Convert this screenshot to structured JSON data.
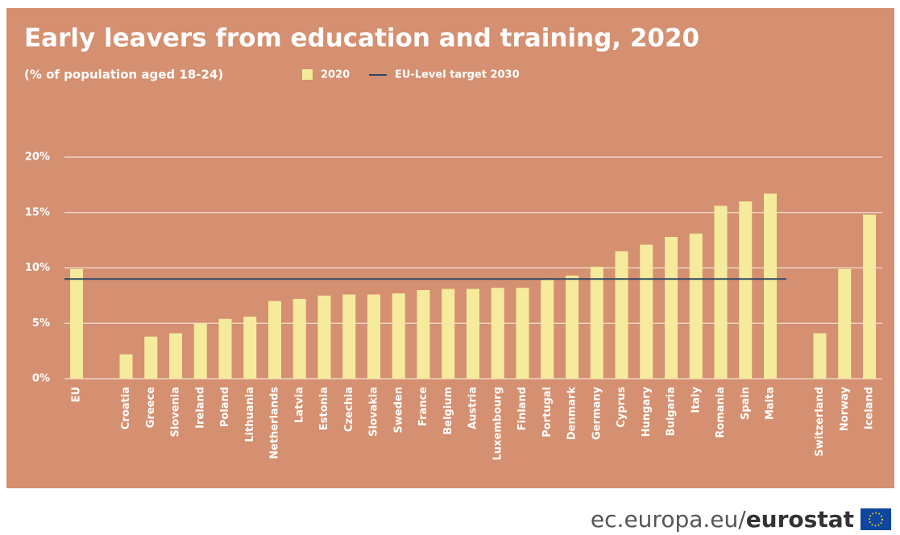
{
  "chart_data": {
    "type": "bar",
    "title": "Early leavers from education and training, 2020",
    "subtitle": "(% of population aged 18-24)",
    "categories": [
      "EU",
      null,
      "Croatia",
      "Greece",
      "Slovenia",
      "Ireland",
      "Poland",
      "Lithuania",
      "Netherlands",
      "Latvia",
      "Estonia",
      "Czechia",
      "Slovakia",
      "Sweden",
      "France",
      "Belgium",
      "Austria",
      "Luxembourg",
      "Finland",
      "Portugal",
      "Denmark",
      "Germany",
      "Cyprus",
      "Hungary",
      "Bulgaria",
      "Italy",
      "Romania",
      "Spain",
      "Malta",
      null,
      "Switzerland",
      "Norway",
      "Iceland"
    ],
    "series": [
      {
        "name": "2020",
        "color": "#f6eb9c",
        "values": [
          9.9,
          null,
          2.2,
          3.8,
          4.1,
          5.0,
          5.4,
          5.6,
          7.0,
          7.2,
          7.5,
          7.6,
          7.6,
          7.7,
          8.0,
          8.1,
          8.1,
          8.2,
          8.2,
          8.9,
          9.3,
          10.1,
          11.5,
          12.1,
          12.8,
          13.1,
          15.6,
          16.0,
          16.7,
          null,
          4.1,
          9.9,
          14.8
        ]
      }
    ],
    "target": {
      "name": "EU-Level target 2030",
      "value": 9,
      "color": "#2c4766"
    },
    "ylim": [
      0,
      20
    ],
    "yticks": [
      {
        "value": 0,
        "label": "0%"
      },
      {
        "value": 5,
        "label": "5%"
      },
      {
        "value": 10,
        "label": "10%"
      },
      {
        "value": 15,
        "label": "15%"
      },
      {
        "value": 20,
        "label": "20%"
      }
    ],
    "grid": true
  },
  "source": {
    "site": "ec.europa.eu/",
    "brand": "eurostat"
  }
}
